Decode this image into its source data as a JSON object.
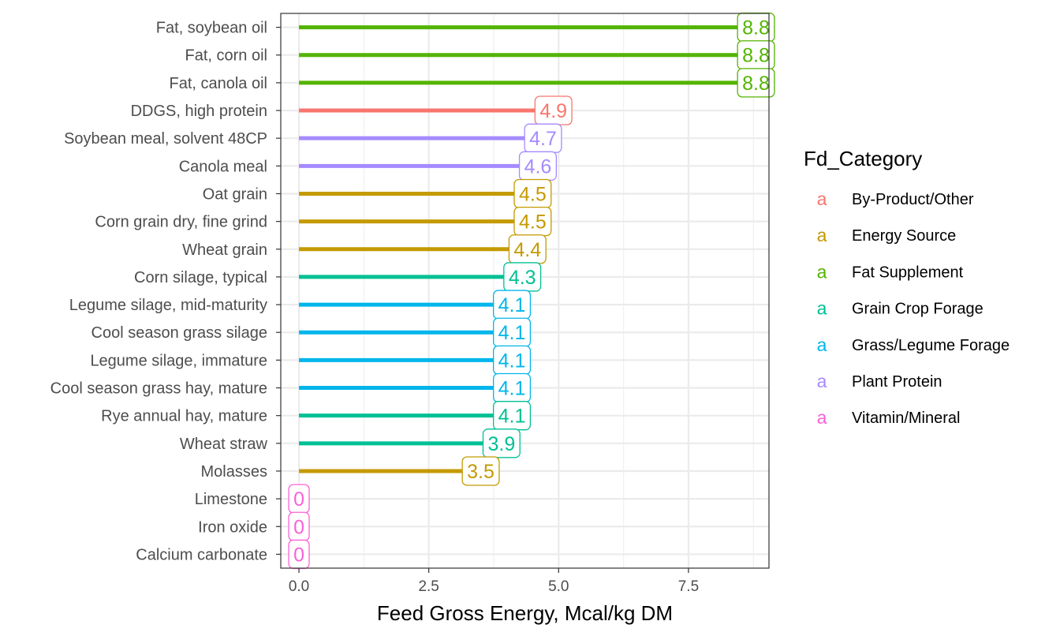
{
  "chart_data": {
    "type": "bar",
    "orientation": "horizontal",
    "style": "lollipop-with-labels",
    "xlabel": "Feed Gross Energy, Mcal/kg DM",
    "ylabel": "",
    "xlim": [
      -0.35,
      9.05
    ],
    "xticks": [
      0,
      2.5,
      5,
      7.5
    ],
    "xtick_labels": [
      "0.0",
      "2.5",
      "5.0",
      "7.5"
    ],
    "grid": true,
    "legend": {
      "title": "Fd_Category",
      "placement": "right",
      "key_glyph": "a",
      "entries": [
        {
          "name": "By-Product/Other",
          "color": "#F8766D"
        },
        {
          "name": "Energy Source",
          "color": "#C49A00"
        },
        {
          "name": "Fat Supplement",
          "color": "#53B400"
        },
        {
          "name": "Grain Crop Forage",
          "color": "#00C094"
        },
        {
          "name": "Grass/Legume Forage",
          "color": "#00B6EB"
        },
        {
          "name": "Plant Protein",
          "color": "#A58AFF"
        },
        {
          "name": "Vitamin/Mineral",
          "color": "#FB61D7"
        }
      ]
    },
    "points": [
      {
        "category": "Fat, soybean oil",
        "value": 8.8,
        "label": "8.8",
        "group": "Fat Supplement"
      },
      {
        "category": "Fat, corn oil",
        "value": 8.8,
        "label": "8.8",
        "group": "Fat Supplement"
      },
      {
        "category": "Fat, canola oil",
        "value": 8.8,
        "label": "8.8",
        "group": "Fat Supplement"
      },
      {
        "category": "DDGS, high protein",
        "value": 4.9,
        "label": "4.9",
        "group": "By-Product/Other"
      },
      {
        "category": "Soybean meal, solvent 48CP",
        "value": 4.7,
        "label": "4.7",
        "group": "Plant Protein"
      },
      {
        "category": "Canola meal",
        "value": 4.6,
        "label": "4.6",
        "group": "Plant Protein"
      },
      {
        "category": "Oat grain",
        "value": 4.5,
        "label": "4.5",
        "group": "Energy Source"
      },
      {
        "category": "Corn grain dry, fine grind",
        "value": 4.5,
        "label": "4.5",
        "group": "Energy Source"
      },
      {
        "category": "Wheat grain",
        "value": 4.4,
        "label": "4.4",
        "group": "Energy Source"
      },
      {
        "category": "Corn silage, typical",
        "value": 4.3,
        "label": "4.3",
        "group": "Grain Crop Forage"
      },
      {
        "category": "Legume silage, mid-maturity",
        "value": 4.1,
        "label": "4.1",
        "group": "Grass/Legume Forage"
      },
      {
        "category": "Cool season grass silage",
        "value": 4.1,
        "label": "4.1",
        "group": "Grass/Legume Forage"
      },
      {
        "category": "Legume silage, immature",
        "value": 4.1,
        "label": "4.1",
        "group": "Grass/Legume Forage"
      },
      {
        "category": "Cool season grass hay, mature",
        "value": 4.1,
        "label": "4.1",
        "group": "Grass/Legume Forage"
      },
      {
        "category": "Rye annual hay, mature",
        "value": 4.1,
        "label": "4.1",
        "group": "Grain Crop Forage"
      },
      {
        "category": "Wheat straw",
        "value": 3.9,
        "label": "3.9",
        "group": "Grain Crop Forage"
      },
      {
        "category": "Molasses",
        "value": 3.5,
        "label": "3.5",
        "group": "Energy Source"
      },
      {
        "category": "Limestone",
        "value": 0,
        "label": "0",
        "group": "Vitamin/Mineral"
      },
      {
        "category": "Iron oxide",
        "value": 0,
        "label": "0",
        "group": "Vitamin/Mineral"
      },
      {
        "category": "Calcium carbonate",
        "value": 0,
        "label": "0",
        "group": "Vitamin/Mineral"
      }
    ]
  }
}
